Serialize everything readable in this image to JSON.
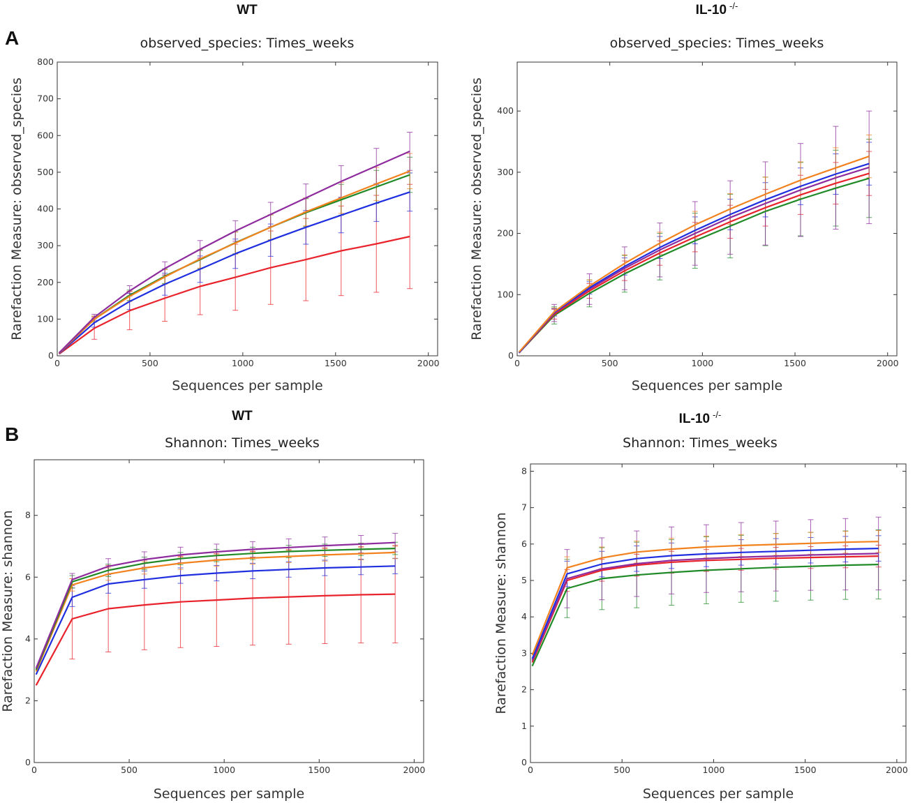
{
  "panel_letters": {
    "A": "A",
    "B": "B"
  },
  "series_colors": {
    "red": "#e8232b",
    "blue": "#1f2fe0",
    "green": "#208a27",
    "orange": "#f2821e",
    "purple": "#8e2c9e"
  },
  "chart_data": [
    {
      "type": "line",
      "group_title": "WT",
      "group_superscript": "",
      "title": "observed_species: Times_weeks",
      "xlabel": "Sequences per sample",
      "ylabel": "Rarefaction Measure: observed_species",
      "xlim": [
        0,
        2050
      ],
      "ylim": [
        0,
        800
      ],
      "xticks": [
        0,
        500,
        1000,
        1500,
        2000
      ],
      "yticks": [
        0,
        100,
        200,
        300,
        400,
        500,
        600,
        700,
        800
      ],
      "x": [
        10,
        200,
        390,
        580,
        770,
        960,
        1150,
        1340,
        1530,
        1720,
        1900
      ],
      "series": [
        {
          "name": "red",
          "color": "#e8232b",
          "values": [
            5,
            75,
            123,
            157,
            189,
            214,
            240,
            262,
            286,
            305,
            325
          ],
          "err": [
            2,
            30,
            52,
            63,
            77,
            90,
            100,
            112,
            122,
            132,
            142
          ]
        },
        {
          "name": "blue",
          "color": "#1f2fe0",
          "values": [
            6,
            90,
            148,
            195,
            236,
            278,
            315,
            350,
            383,
            416,
            446
          ],
          "err": [
            2,
            12,
            22,
            30,
            36,
            40,
            44,
            46,
            48,
            50,
            52
          ]
        },
        {
          "name": "green",
          "color": "#208a27",
          "values": [
            7,
            100,
            165,
            217,
            262,
            308,
            350,
            390,
            425,
            460,
            493
          ],
          "err": [
            2,
            8,
            14,
            20,
            25,
            30,
            34,
            38,
            42,
            45,
            48
          ]
        },
        {
          "name": "orange",
          "color": "#f2821e",
          "values": [
            7,
            100,
            162,
            215,
            264,
            307,
            350,
            392,
            430,
            468,
            503
          ],
          "err": [
            2,
            8,
            14,
            20,
            25,
            30,
            34,
            38,
            42,
            45,
            48
          ]
        },
        {
          "name": "purple",
          "color": "#8e2c9e",
          "values": [
            8,
            105,
            177,
            238,
            290,
            340,
            385,
            430,
            475,
            517,
            557
          ],
          "err": [
            2,
            8,
            14,
            18,
            24,
            28,
            33,
            38,
            43,
            48,
            52
          ]
        }
      ]
    },
    {
      "type": "line",
      "group_title": "IL-10",
      "group_superscript": "-/-",
      "title": "observed_species: Times_weeks",
      "xlabel": "Sequences per sample",
      "ylabel": "Rarefaction Measure: observed_species",
      "xlim": [
        0,
        2050
      ],
      "ylim": [
        0,
        480
      ],
      "xticks": [
        0,
        500,
        1000,
        1500,
        2000
      ],
      "yticks": [
        0,
        100,
        200,
        300,
        400
      ],
      "x": [
        10,
        200,
        390,
        580,
        770,
        960,
        1150,
        1340,
        1530,
        1720,
        1900
      ],
      "series": [
        {
          "name": "green",
          "color": "#208a27",
          "values": [
            5,
            66,
            102,
            134,
            162,
            188,
            212,
            236,
            256,
            274,
            290
          ],
          "err": [
            1,
            14,
            22,
            30,
            38,
            45,
            52,
            56,
            60,
            62,
            64
          ]
        },
        {
          "name": "red",
          "color": "#e8232b",
          "values": [
            5,
            68,
            106,
            139,
            168,
            194,
            219,
            242,
            263,
            282,
            298
          ],
          "err": [
            1,
            8,
            12,
            16,
            20,
            24,
            27,
            30,
            32,
            34,
            36
          ]
        },
        {
          "name": "purple",
          "color": "#8e2c9e",
          "values": [
            5,
            70,
            109,
            143,
            173,
            200,
            226,
            249,
            271,
            291,
            308
          ],
          "err": [
            1,
            14,
            25,
            35,
            44,
            52,
            60,
            68,
            76,
            84,
            92
          ]
        },
        {
          "name": "blue",
          "color": "#1f2fe0",
          "values": [
            5,
            71,
            111,
            146,
            177,
            205,
            231,
            255,
            277,
            297,
            314
          ],
          "err": [
            1,
            6,
            10,
            14,
            18,
            22,
            25,
            28,
            30,
            33,
            35
          ]
        },
        {
          "name": "orange",
          "color": "#f2821e",
          "values": [
            6,
            72,
            114,
            151,
            184,
            214,
            240,
            264,
            287,
            307,
            326
          ],
          "err": [
            1,
            6,
            10,
            14,
            18,
            22,
            25,
            28,
            30,
            33,
            35
          ]
        }
      ]
    },
    {
      "type": "line",
      "group_title": "WT",
      "group_superscript": "",
      "title": "Shannon: Times_weeks",
      "xlabel": "Sequences per sample",
      "ylabel": "Rarefaction Measure: shannon",
      "xlim": [
        0,
        2050
      ],
      "ylim": [
        0,
        9.8
      ],
      "xticks": [
        0,
        500,
        1000,
        1500,
        2000
      ],
      "yticks": [
        0,
        2,
        4,
        6,
        8
      ],
      "x": [
        10,
        200,
        390,
        580,
        770,
        960,
        1150,
        1340,
        1530,
        1720,
        1900
      ],
      "series": [
        {
          "name": "red",
          "color": "#e8232b",
          "values": [
            2.5,
            4.65,
            4.98,
            5.1,
            5.2,
            5.26,
            5.32,
            5.36,
            5.4,
            5.43,
            5.45
          ],
          "err": [
            0.5,
            1.3,
            1.4,
            1.45,
            1.48,
            1.5,
            1.52,
            1.53,
            1.55,
            1.56,
            1.58
          ]
        },
        {
          "name": "blue",
          "color": "#1f2fe0",
          "values": [
            2.85,
            5.35,
            5.78,
            5.92,
            6.05,
            6.13,
            6.2,
            6.25,
            6.3,
            6.33,
            6.36
          ],
          "err": [
            0.15,
            0.3,
            0.3,
            0.28,
            0.25,
            0.25,
            0.25,
            0.25,
            0.25,
            0.25,
            0.25
          ]
        },
        {
          "name": "orange",
          "color": "#f2821e",
          "values": [
            2.95,
            5.75,
            6.1,
            6.3,
            6.45,
            6.55,
            6.62,
            6.67,
            6.72,
            6.76,
            6.8
          ],
          "err": [
            0.15,
            0.2,
            0.2,
            0.2,
            0.2,
            0.2,
            0.2,
            0.2,
            0.2,
            0.2,
            0.2
          ]
        },
        {
          "name": "green",
          "color": "#208a27",
          "values": [
            3.0,
            5.85,
            6.22,
            6.45,
            6.6,
            6.7,
            6.77,
            6.83,
            6.87,
            6.9,
            6.93
          ],
          "err": [
            0.15,
            0.2,
            0.2,
            0.2,
            0.2,
            0.2,
            0.2,
            0.2,
            0.2,
            0.2,
            0.2
          ]
        },
        {
          "name": "purple",
          "color": "#8e2c9e",
          "values": [
            3.05,
            5.92,
            6.35,
            6.57,
            6.72,
            6.82,
            6.9,
            6.96,
            7.02,
            7.07,
            7.12
          ],
          "err": [
            0.15,
            0.2,
            0.25,
            0.25,
            0.25,
            0.25,
            0.25,
            0.28,
            0.28,
            0.28,
            0.3
          ]
        }
      ]
    },
    {
      "type": "line",
      "group_title": "IL-10",
      "group_superscript": "-/-",
      "title": "Shannon: Times_weeks",
      "xlabel": "Sequences per sample",
      "ylabel": "Rarefaction Measure: shannon",
      "xlim": [
        0,
        2050
      ],
      "ylim": [
        0,
        8.2
      ],
      "xticks": [
        0,
        500,
        1000,
        1500,
        2000
      ],
      "yticks": [
        0,
        1,
        2,
        3,
        4,
        5,
        6,
        7,
        8
      ],
      "x": [
        10,
        200,
        390,
        580,
        770,
        960,
        1150,
        1340,
        1530,
        1720,
        1900
      ],
      "series": [
        {
          "name": "green",
          "color": "#208a27",
          "values": [
            2.65,
            4.78,
            5.05,
            5.15,
            5.22,
            5.28,
            5.32,
            5.36,
            5.39,
            5.42,
            5.44
          ],
          "err": [
            0.25,
            0.8,
            0.85,
            0.9,
            0.9,
            0.92,
            0.92,
            0.93,
            0.93,
            0.94,
            0.95
          ]
        },
        {
          "name": "red",
          "color": "#e8232b",
          "values": [
            2.75,
            5.0,
            5.28,
            5.42,
            5.5,
            5.55,
            5.58,
            5.61,
            5.63,
            5.65,
            5.67
          ],
          "err": [
            0.2,
            0.3,
            0.3,
            0.3,
            0.3,
            0.3,
            0.3,
            0.3,
            0.3,
            0.3,
            0.3
          ]
        },
        {
          "name": "purple",
          "color": "#8e2c9e",
          "values": [
            2.8,
            5.05,
            5.32,
            5.46,
            5.55,
            5.6,
            5.64,
            5.67,
            5.7,
            5.72,
            5.74
          ],
          "err": [
            0.3,
            0.8,
            0.85,
            0.9,
            0.92,
            0.93,
            0.95,
            0.96,
            0.97,
            0.98,
            1.0
          ]
        },
        {
          "name": "blue",
          "color": "#1f2fe0",
          "values": [
            2.85,
            5.18,
            5.45,
            5.6,
            5.68,
            5.73,
            5.77,
            5.8,
            5.83,
            5.86,
            5.88
          ],
          "err": [
            0.2,
            0.35,
            0.35,
            0.35,
            0.35,
            0.35,
            0.35,
            0.35,
            0.35,
            0.35,
            0.35
          ]
        },
        {
          "name": "orange",
          "color": "#f2821e",
          "values": [
            2.95,
            5.35,
            5.62,
            5.78,
            5.86,
            5.92,
            5.96,
            5.99,
            6.02,
            6.05,
            6.07
          ],
          "err": [
            0.2,
            0.3,
            0.3,
            0.3,
            0.3,
            0.3,
            0.3,
            0.3,
            0.3,
            0.3,
            0.3
          ]
        }
      ]
    }
  ]
}
